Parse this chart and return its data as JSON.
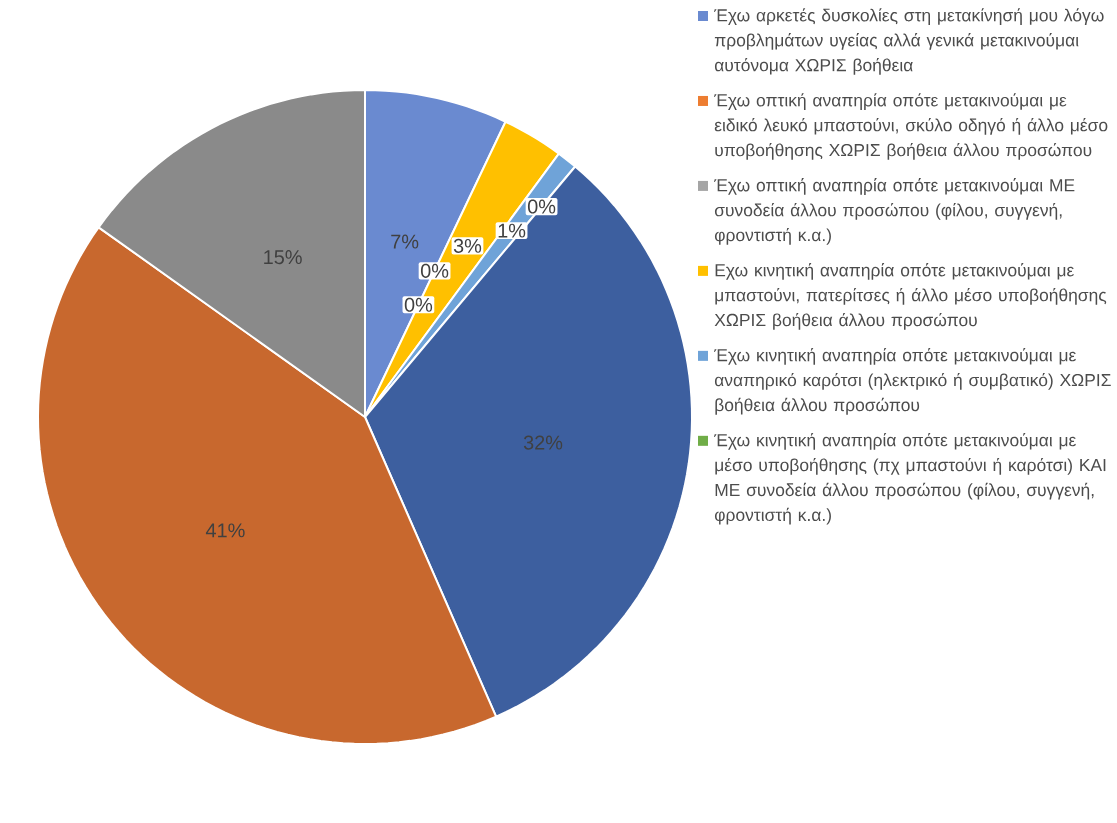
{
  "chart_data": {
    "type": "pie",
    "categories": [
      "Έχω αρκετές δυσκολίες στη μετακίνησή μου λόγω προβλημάτων υγείας αλλά γενικά μετακινούμαι αυτόνομα ΧΩΡΙΣ βοήθεια",
      "Έχω οπτική αναπηρία οπότε μετακινούμαι με ειδικό λευκό μπαστούνι, σκύλο οδηγό ή άλλο μέσο υποβοήθησης ΧΩΡΙΣ βοήθεια άλλου προσώπου",
      "Έχω οπτική αναπηρία οπότε μετακινούμαι ΜΕ συνοδεία άλλου προσώπου (φίλου, συγγενή, φροντιστή κ.α.)",
      "Εχω κινητική αναπηρία οπότε μετακινούμαι με μπαστούνι, πατερίτσες ή άλλο μέσο υποβοήθησης ΧΩΡΙΣ βοήθεια άλλου προσώπου",
      "Έχω κινητική αναπηρία οπότε μετακινούμαι με αναπηρικό καρότσι (ηλεκτρικό ή συμβατικό) ΧΩΡΙΣ βοήθεια άλλου προσώπου",
      "Έχω κινητική αναπηρία οπότε μετακινούμαι με μέσο υποβοήθησης (πχ μπαστούνι ή καρότσι) ΚΑΙ ΜΕ συνοδεία άλλου προσώπου (φίλου, συγγενή, φροντιστή κ.α.)",
      null,
      null,
      null
    ],
    "values": [
      7,
      0,
      0,
      3,
      1,
      0,
      32,
      41,
      15
    ],
    "value_labels": [
      "7%",
      "0%",
      "0%",
      "3%",
      "1%",
      "0%",
      "32%",
      "41%",
      "15%"
    ],
    "colors": [
      "#6a8ad0",
      "#ed7d31",
      "#a5a5a5",
      "#ffc000",
      "#6fa3d8",
      "#70ad47",
      "#3d5f9f",
      "#c8682e",
      "#8a8a8a"
    ],
    "legend": "right"
  }
}
